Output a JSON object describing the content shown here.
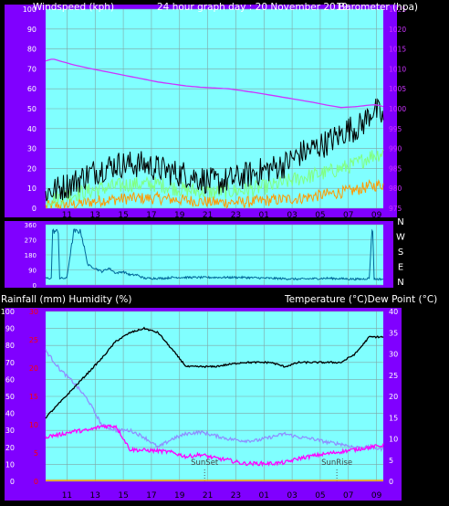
{
  "header": {
    "left": "Windspeed (kph)",
    "center": "24 hour graph day : 20 November 2019",
    "right": "Barometer (hpa)"
  },
  "lower_header": {
    "left": "Rainfall (mm)  Humidity (%)",
    "right": "Temperature (°C)Dew Point (°C)"
  },
  "direction_labels": [
    "N",
    "W",
    "S",
    "E",
    "N"
  ],
  "sun_labels": {
    "sunset": "SunSet",
    "sunrise": "SunRise"
  },
  "colors": {
    "frame": "#8000ff",
    "plot": "#80ffff",
    "grid": "#7fa6a6",
    "axis_text": "#ffffff",
    "pressure": "#cc33ff",
    "gust": "#000000",
    "avg_wind": "#80ff80",
    "min_wind": "#ff9900",
    "direction": "#006699",
    "temperature": "#000000",
    "humidity": "#8f8fff",
    "dewpoint": "#ff00ff",
    "rain_axis": "#ff0000"
  },
  "chart_data": [
    {
      "type": "line",
      "name": "wind-pressure",
      "x_ticks": [
        "11",
        "13",
        "15",
        "17",
        "19",
        "21",
        "23",
        "01",
        "03",
        "05",
        "07",
        "09"
      ],
      "y_left": {
        "label": "Windspeed (kph)",
        "ticks": [
          0,
          10,
          20,
          30,
          40,
          50,
          60,
          70,
          80,
          90,
          100
        ],
        "ylim": [
          0,
          100
        ]
      },
      "y_right": {
        "label": "Barometer (hpa)",
        "ticks": [
          975,
          980,
          985,
          990,
          995,
          1000,
          1005,
          1010,
          1015,
          1020,
          1025
        ],
        "ylim": [
          975,
          1025
        ]
      },
      "x_range_hours": [
        0,
        24
      ],
      "series": [
        {
          "key": "pressure",
          "axis": "right",
          "x": [
            0,
            0.5,
            1,
            2,
            3,
            4,
            5,
            6,
            7,
            8,
            9,
            10,
            11,
            12,
            13,
            14,
            15,
            16,
            17,
            18,
            19,
            20,
            21,
            22,
            22.5,
            23,
            23.5,
            24
          ],
          "values": [
            1012,
            1012.5,
            1012,
            1011,
            1010.2,
            1009.5,
            1008.8,
            1008.1,
            1007.4,
            1006.7,
            1006.2,
            1005.7,
            1005.4,
            1005.2,
            1005,
            1004.5,
            1004,
            1003.4,
            1002.8,
            1002.2,
            1001.6,
            1000.9,
            1000.3,
            1000.5,
            1000.7,
            1000.9,
            1001,
            1000.5
          ]
        },
        {
          "key": "gust",
          "axis": "left",
          "noise": 7,
          "x": [
            0,
            1,
            2,
            3,
            4,
            5,
            6,
            7,
            8,
            9,
            10,
            11,
            12,
            13,
            14,
            15,
            16,
            17,
            18,
            19,
            20,
            21,
            21.5,
            22,
            22.5,
            23,
            23.3,
            23.6,
            24
          ],
          "values": [
            8,
            10,
            13,
            17,
            20,
            22,
            22,
            22,
            20,
            18,
            17,
            15,
            13,
            14,
            16,
            18,
            20,
            22,
            27,
            30,
            33,
            37,
            40,
            40,
            42,
            47,
            50,
            48,
            45
          ]
        },
        {
          "key": "avg_wind",
          "axis": "left",
          "noise": 4,
          "x": [
            0,
            2,
            4,
            6,
            8,
            10,
            12,
            14,
            16,
            18,
            20,
            21,
            22,
            23,
            24
          ],
          "values": [
            4,
            7,
            10,
            12,
            12,
            9,
            8,
            9,
            11,
            15,
            18,
            20,
            22,
            26,
            28
          ]
        },
        {
          "key": "min_wind",
          "axis": "left",
          "noise": 3,
          "x": [
            0,
            2,
            4,
            6,
            8,
            10,
            12,
            14,
            16,
            18,
            20,
            22,
            23,
            24
          ],
          "values": [
            1,
            2,
            4,
            5,
            5,
            4,
            3,
            3,
            4,
            5,
            7,
            9,
            11,
            12
          ]
        }
      ]
    },
    {
      "type": "line",
      "name": "wind-direction",
      "x_range_hours": [
        0,
        24
      ],
      "y_labels": [
        "N",
        "W",
        "S",
        "E",
        "N"
      ],
      "ylim": [
        0,
        360
      ],
      "series": [
        {
          "key": "direction",
          "noise": 25,
          "x": [
            0,
            0.4,
            0.5,
            0.9,
            1.0,
            1.5,
            2,
            2.5,
            3,
            3.5,
            4,
            4.5,
            5,
            5.5,
            6,
            6.5,
            7,
            7.5,
            7.6,
            8,
            8.4,
            9,
            10,
            12,
            14,
            16,
            18,
            20,
            22,
            22.5,
            23,
            23.2,
            23.25,
            23.35,
            24
          ],
          "values": [
            40,
            40,
            320,
            320,
            40,
            40,
            320,
            320,
            120,
            100,
            80,
            100,
            70,
            80,
            60,
            60,
            40,
            40,
            40,
            40,
            40,
            45,
            45,
            45,
            45,
            40,
            35,
            40,
            35,
            35,
            40,
            330,
            330,
            35,
            35
          ]
        }
      ]
    },
    {
      "type": "line",
      "name": "temp-humidity-rain",
      "x_ticks": [
        "11",
        "13",
        "15",
        "17",
        "19",
        "21",
        "23",
        "01",
        "03",
        "05",
        "07",
        "09"
      ],
      "y_left": {
        "label": "Humidity (%)",
        "ticks": [
          0,
          10,
          20,
          30,
          40,
          50,
          60,
          70,
          80,
          90,
          100
        ],
        "ylim": [
          0,
          100
        ]
      },
      "y_rain": {
        "label": "Rainfall (mm)",
        "ticks": [
          0,
          5,
          10,
          15,
          20,
          25,
          30
        ],
        "ylim": [
          0,
          30
        ]
      },
      "y_right": {
        "label": "Temperature (°C)",
        "ticks": [
          0,
          5,
          10,
          15,
          20,
          25,
          30,
          35,
          40
        ],
        "ylim": [
          0,
          40
        ]
      },
      "x_range_hours": [
        0,
        24
      ],
      "series": [
        {
          "key": "temperature",
          "axis": "right",
          "noise": 0.2,
          "x": [
            0,
            2,
            4,
            5,
            6,
            7,
            8,
            9,
            10,
            11,
            12,
            13,
            14,
            15,
            16,
            17,
            18,
            19,
            20,
            21,
            22,
            23,
            24
          ],
          "values": [
            15,
            22,
            29,
            33,
            35,
            36,
            35,
            31,
            27,
            27,
            27,
            27.5,
            28,
            28,
            28,
            27,
            28,
            28,
            28,
            28,
            30,
            34,
            34
          ]
        },
        {
          "key": "humidity",
          "axis": "left",
          "noise": 1,
          "x": [
            0,
            1,
            2,
            3,
            4,
            5,
            6,
            7,
            8,
            9,
            10,
            11,
            12,
            13,
            14,
            15,
            16,
            17,
            18,
            19,
            20,
            21,
            22,
            23,
            24
          ],
          "values": [
            77,
            66,
            58,
            48,
            33,
            30,
            30,
            26,
            20,
            25,
            28,
            29,
            27,
            25,
            24,
            24,
            26,
            28,
            26,
            25,
            23,
            22,
            20,
            20,
            19
          ]
        },
        {
          "key": "dewpoint",
          "axis": "right",
          "noise": 0.45,
          "x": [
            0,
            1,
            2,
            3,
            4,
            5,
            6,
            7,
            8,
            9,
            10,
            11,
            12,
            13,
            14,
            15,
            16,
            17,
            18,
            19,
            20,
            21,
            22,
            23,
            24
          ],
          "values": [
            10.5,
            11,
            11.8,
            12,
            13,
            13,
            7.5,
            7.3,
            7.2,
            6.8,
            5.8,
            6.3,
            5.5,
            5,
            4.2,
            4.2,
            4.2,
            4.4,
            5.4,
            6,
            6.5,
            7,
            7.5,
            8,
            8.5
          ]
        }
      ],
      "sunset_hour": 11.3,
      "sunrise_hour": 20.7
    }
  ]
}
